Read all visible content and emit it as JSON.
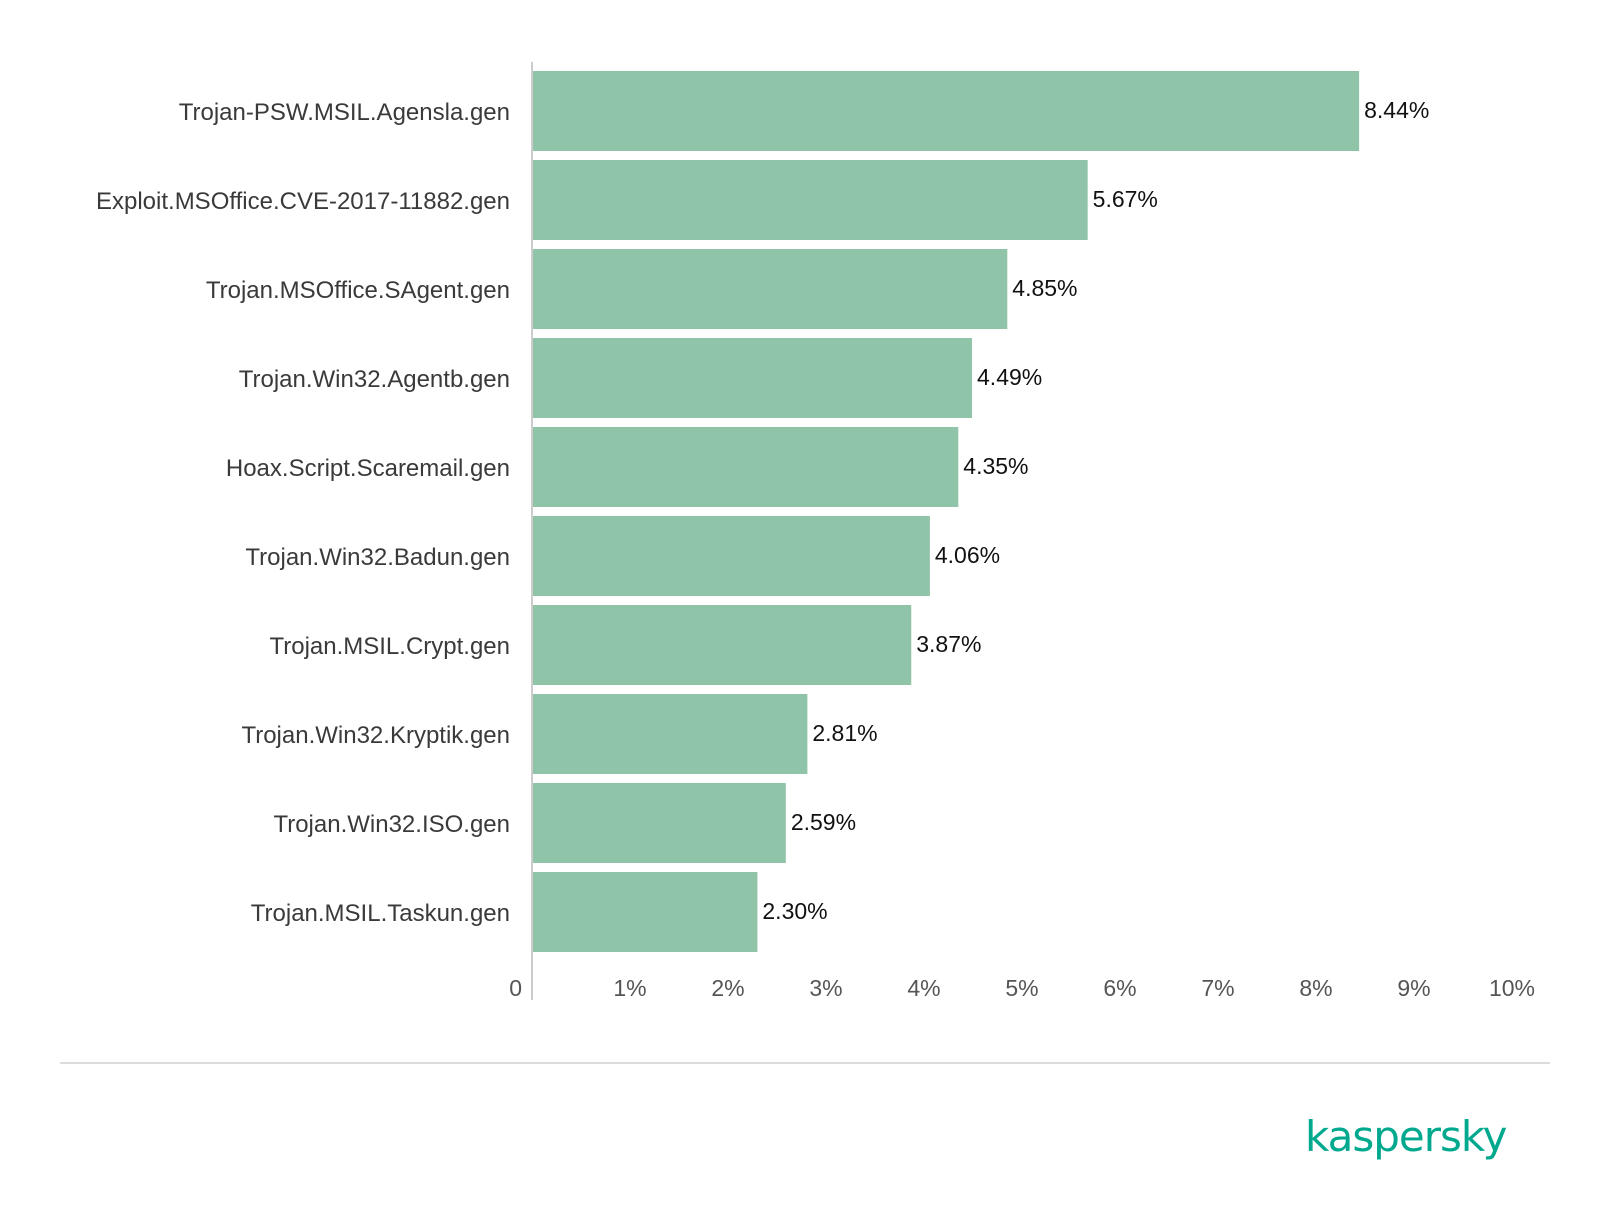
{
  "brand": {
    "logo_text": "kaspersky",
    "color": "#00a88e"
  },
  "chart_data": {
    "type": "bar",
    "orientation": "horizontal",
    "categories": [
      "Trojan-PSW.MSIL.Agensla.gen",
      "Exploit.MSOffice.CVE-2017-11882.gen",
      "Trojan.MSOffice.SAgent.gen",
      "Trojan.Win32.Agentb.gen",
      "Hoax.Script.Scaremail.gen",
      "Trojan.Win32.Badun.gen",
      "Trojan.MSIL.Crypt.gen",
      "Trojan.Win32.Kryptik.gen",
      "Trojan.Win32.ISO.gen",
      "Trojan.MSIL.Taskun.gen"
    ],
    "values": [
      8.44,
      5.67,
      4.85,
      4.49,
      4.35,
      4.06,
      3.87,
      2.81,
      2.59,
      2.3
    ],
    "value_labels": [
      "8.44%",
      "5.67%",
      "4.85%",
      "4.49%",
      "4.35%",
      "4.06%",
      "3.87%",
      "2.81%",
      "2.59%",
      "2.30%"
    ],
    "xlim": [
      0,
      10
    ],
    "x_ticks": [
      0,
      1,
      2,
      3,
      4,
      5,
      6,
      7,
      8,
      9,
      10
    ],
    "x_tick_labels": [
      "0",
      "1%",
      "2%",
      "3%",
      "4%",
      "5%",
      "6%",
      "7%",
      "8%",
      "9%",
      "10%"
    ],
    "bar_color": "#90c4a8",
    "grid": false
  }
}
